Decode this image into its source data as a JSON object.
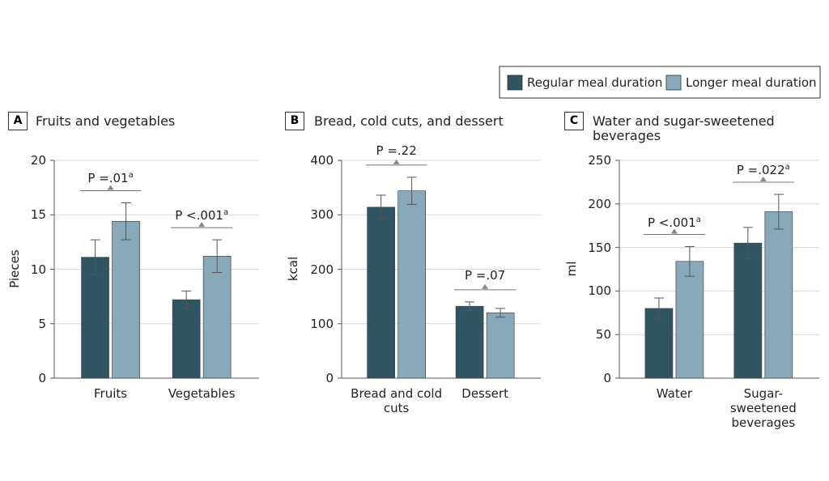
{
  "legend": [
    {
      "name": "Regular meal duration",
      "color": "#2e5561"
    },
    {
      "name": "Longer meal duration",
      "color": "#87a9b9"
    }
  ],
  "chart_data": [
    {
      "type": "bar",
      "panel": "A",
      "title": "Fruits and vegetables",
      "y_label": "Pieces",
      "categories": [
        "Fruits",
        "Vegetables"
      ],
      "series": [
        {
          "values": [
            11.1,
            7.2
          ],
          "errors": [
            1.6,
            0.8
          ]
        },
        {
          "values": [
            14.4,
            11.2
          ],
          "errors": [
            1.7,
            1.5
          ]
        }
      ],
      "annotations": [
        {
          "text": "P =.01",
          "sup": "a"
        },
        {
          "text": "P <.001",
          "sup": "a"
        }
      ],
      "ylim": [
        0,
        20
      ],
      "yticks": [
        0,
        5,
        10,
        15,
        20
      ],
      "grid": true
    },
    {
      "type": "bar",
      "panel": "B",
      "title": "Bread, cold cuts, and dessert",
      "y_label": "kcal",
      "categories": [
        "Bread and cold cuts",
        "Dessert"
      ],
      "series": [
        {
          "values": [
            314,
            132
          ],
          "errors": [
            22,
            8
          ]
        },
        {
          "values": [
            344,
            120
          ],
          "errors": [
            25,
            8
          ]
        }
      ],
      "annotations": [
        {
          "text": "P =.22"
        },
        {
          "text": "P =.07"
        }
      ],
      "ylim": [
        0,
        400
      ],
      "yticks": [
        0,
        100,
        200,
        300,
        400
      ],
      "grid": true
    },
    {
      "type": "bar",
      "panel": "C",
      "title": "Water and sugar-sweetened beverages",
      "y_label": "ml",
      "categories": [
        "Water",
        "Sugar-sweetened beverages"
      ],
      "series": [
        {
          "values": [
            80,
            155
          ],
          "errors": [
            12,
            18
          ]
        },
        {
          "values": [
            134,
            191
          ],
          "errors": [
            17,
            20
          ]
        }
      ],
      "annotations": [
        {
          "text": "P <.001",
          "sup": "a"
        },
        {
          "text": "P =.022",
          "sup": "a"
        }
      ],
      "ylim": [
        0,
        250
      ],
      "yticks": [
        0,
        50,
        100,
        150,
        200,
        250
      ],
      "grid": true
    }
  ]
}
